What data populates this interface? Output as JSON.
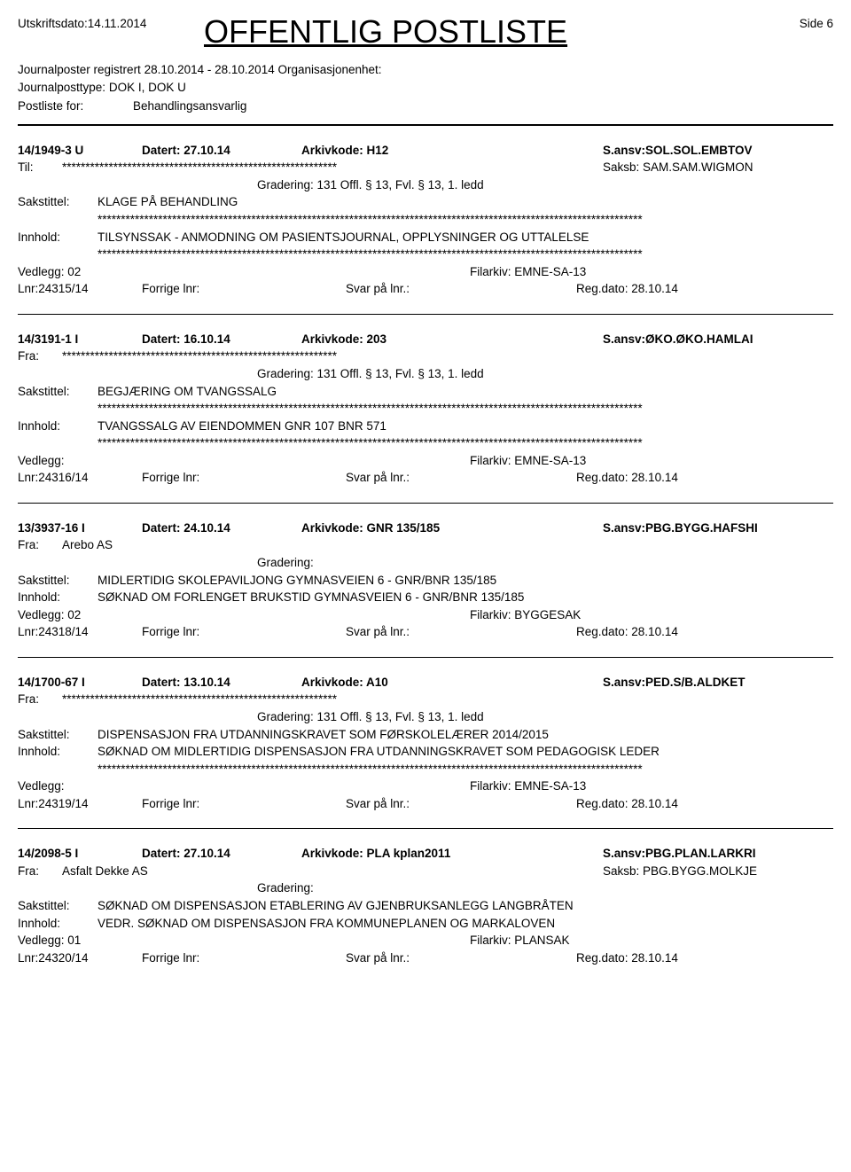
{
  "header": {
    "print_date_label": "Utskriftsdato:",
    "print_date": "14.11.2014",
    "title": "OFFENTLIG POSTLISTE",
    "page_label": "Side 6"
  },
  "meta": {
    "line1_label": "Journalposter registrert",
    "line1_range": "28.10.2014 - 28.10.2014",
    "line1_org": "Organisasjonenhet:",
    "line2_label": "Journalposttype:",
    "line2_value": "DOK I, DOK U",
    "line3_label": "Postliste for:",
    "line3_value": "Behandlingsansvarlig"
  },
  "labels": {
    "datert": "Datert:",
    "arkivkode": "Arkivkode:",
    "sansv": "S.ansv:",
    "saksb": "Saksb:",
    "til": "Til:",
    "fra": "Fra:",
    "gradering": "Gradering:",
    "sakstittel": "Sakstittel:",
    "innhold": "Innhold:",
    "vedlegg": "Vedlegg:",
    "filarkiv": "Filarkiv:",
    "lnr": "Lnr:",
    "forrige": "Forrige lnr:",
    "svar": "Svar på lnr.:",
    "regdato": "Reg.dato:"
  },
  "stars_short": "***********************************************************",
  "stars_long": "*********************************************************************************************************************",
  "entries": [
    {
      "case": "14/1949-3 U",
      "datert": "27.10.14",
      "arkivkode": "H12",
      "sansv": "SOL.SOL.EMBTOV",
      "party_label": "Til:",
      "party_value": "__STARS__",
      "saksb": "SAM.SAM.WIGMON",
      "gradering": "131 Offl. § 13, Fvl. § 13, 1. ledd",
      "sakstittel": "KLAGE PÅ BEHANDLING",
      "sakstittel_stars": true,
      "innhold": "TILSYNSSAK - ANMODNING OM PASIENTSJOURNAL, OPPLYSNINGER OG UTTALELSE",
      "innhold_stars": true,
      "vedlegg": "02",
      "filarkiv": "EMNE-SA-13",
      "lnr": "24315/14",
      "regdato": "28.10.14"
    },
    {
      "case": "14/3191-1 I",
      "datert": "16.10.14",
      "arkivkode": "203",
      "sansv": "ØKO.ØKO.HAMLAI",
      "party_label": "Fra:",
      "party_value": "__STARS__",
      "saksb": "",
      "gradering": "131 Offl. § 13, Fvl. § 13, 1. ledd",
      "sakstittel": "BEGJÆRING OM TVANGSSALG",
      "sakstittel_stars": true,
      "innhold": "TVANGSSALG AV EIENDOMMEN GNR 107 BNR 571",
      "innhold_stars": true,
      "vedlegg": "",
      "filarkiv": "EMNE-SA-13",
      "lnr": "24316/14",
      "regdato": "28.10.14"
    },
    {
      "case": "13/3937-16 I",
      "datert": "24.10.14",
      "arkivkode": "GNR 135/185",
      "sansv": "PBG.BYGG.HAFSHI",
      "party_label": "Fra:",
      "party_value": "Arebo AS",
      "saksb": "",
      "gradering": "",
      "sakstittel": "MIDLERTIDIG SKOLEPAVILJONG GYMNASVEIEN 6 - GNR/BNR 135/185",
      "sakstittel_stars": false,
      "innhold": "SØKNAD OM FORLENGET BRUKSTID GYMNASVEIEN 6 - GNR/BNR 135/185",
      "innhold_stars": false,
      "vedlegg": "02",
      "filarkiv": "BYGGESAK",
      "lnr": "24318/14",
      "regdato": "28.10.14"
    },
    {
      "case": "14/1700-67 I",
      "datert": "13.10.14",
      "arkivkode": "A10",
      "sansv": "PED.S/B.ALDKET",
      "party_label": "Fra:",
      "party_value": "__STARS__",
      "saksb": "",
      "gradering": "131 Offl. § 13, Fvl. § 13, 1. ledd",
      "sakstittel": "DISPENSASJON FRA UTDANNINGSKRAVET SOM FØRSKOLELÆRER 2014/2015",
      "sakstittel_stars": false,
      "innhold": "SØKNAD OM MIDLERTIDIG DISPENSASJON FRA UTDANNINGSKRAVET SOM PEDAGOGISK LEDER",
      "innhold_stars": true,
      "vedlegg": "",
      "filarkiv": "EMNE-SA-13",
      "lnr": "24319/14",
      "regdato": "28.10.14"
    },
    {
      "case": "14/2098-5 I",
      "datert": "27.10.14",
      "arkivkode": "PLA kplan2011",
      "sansv": "PBG.PLAN.LARKRI",
      "party_label": "Fra:",
      "party_value": "Asfalt Dekke AS",
      "saksb": "PBG.BYGG.MOLKJE",
      "gradering": "",
      "sakstittel": "SØKNAD OM DISPENSASJON ETABLERING AV GJENBRUKSANLEGG LANGBRÅTEN",
      "sakstittel_stars": false,
      "innhold": "VEDR. SØKNAD OM DISPENSASJON FRA KOMMUNEPLANEN OG MARKALOVEN",
      "innhold_stars": false,
      "vedlegg": "01",
      "filarkiv": "PLANSAK",
      "lnr": "24320/14",
      "regdato": "28.10.14"
    }
  ]
}
